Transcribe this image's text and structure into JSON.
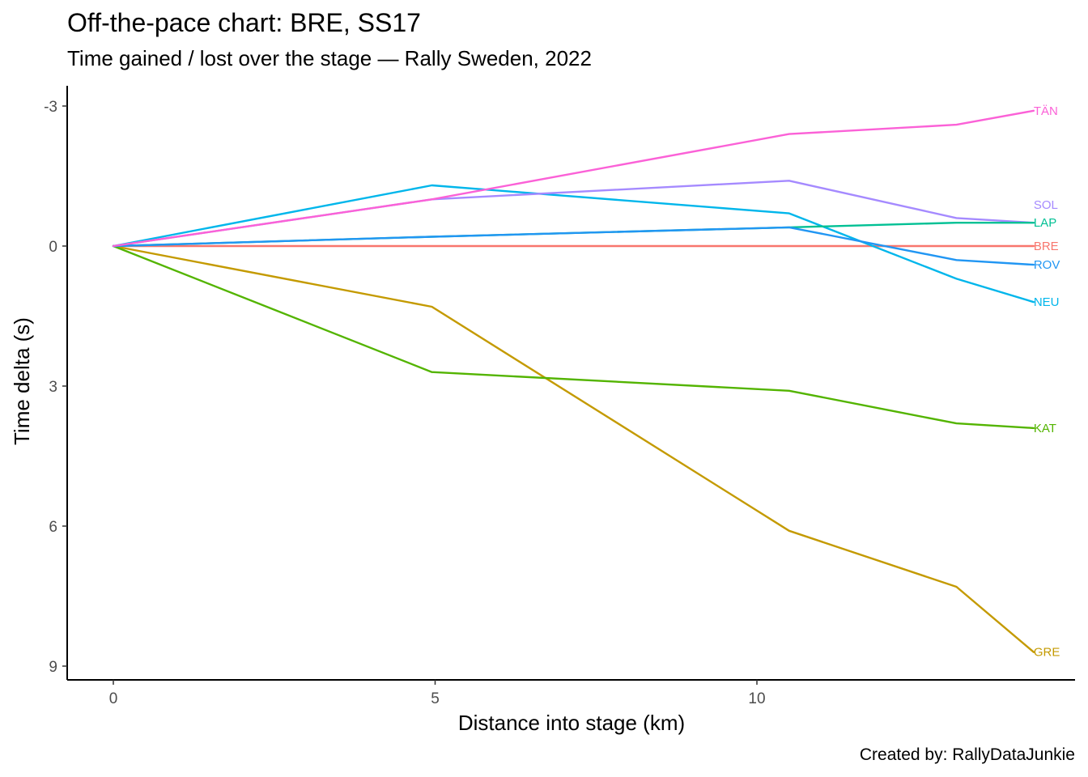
{
  "title": "Off-the-pace chart: BRE, SS17",
  "subtitle": "Time gained / lost over the stage — Rally Sweden, 2022",
  "caption": "Created by: RallyDataJunkie",
  "chart_data": {
    "type": "line",
    "xlabel": "Distance into stage (km)",
    "ylabel": "Time delta (s)",
    "xlim": [
      -0.7,
      15.0
    ],
    "ylim": [
      9.3,
      -3.45
    ],
    "y_reversed": true,
    "x_ticks": [
      0,
      5,
      10
    ],
    "y_ticks": [
      -3,
      0,
      3,
      6,
      9
    ],
    "y_tick_labels": [
      "-3",
      "0",
      "3",
      "6",
      "9"
    ],
    "grid": false,
    "legend": "none (direct end labels)",
    "series": [
      {
        "name": "BRE",
        "color": "#F8766D",
        "x": [
          0,
          4.95,
          10.5,
          13.1,
          14.3
        ],
        "y": [
          0,
          0,
          0,
          0,
          0
        ]
      },
      {
        "name": "GRE",
        "color": "#C49A00",
        "x": [
          0,
          4.95,
          10.5,
          13.1,
          14.3
        ],
        "y": [
          0,
          1.3,
          6.1,
          7.3,
          8.7
        ]
      },
      {
        "name": "KAT",
        "color": "#53B400",
        "x": [
          0,
          4.95,
          10.5,
          13.1,
          14.3
        ],
        "y": [
          0,
          2.7,
          3.1,
          3.8,
          3.9
        ]
      },
      {
        "name": "LAP",
        "color": "#00C094",
        "x": [
          0,
          4.95,
          10.5,
          13.1,
          14.3
        ],
        "y": [
          0,
          -0.2,
          -0.4,
          -0.5,
          -0.5
        ]
      },
      {
        "name": "NEU",
        "color": "#00B6EB",
        "x": [
          0,
          4.95,
          10.5,
          13.1,
          14.3
        ],
        "y": [
          0,
          -1.3,
          -0.7,
          0.7,
          1.2
        ]
      },
      {
        "name": "ROV",
        "color": "#2196F3",
        "x": [
          0,
          4.95,
          10.5,
          13.1,
          14.3
        ],
        "y": [
          0,
          -0.2,
          -0.4,
          0.3,
          0.4
        ]
      },
      {
        "name": "SOL",
        "color": "#A58AFF",
        "x": [
          0,
          4.95,
          10.5,
          13.1,
          14.3
        ],
        "y": [
          0,
          -1.0,
          -1.4,
          -0.6,
          -0.5
        ]
      },
      {
        "name": "TÄN",
        "color": "#FB61D7",
        "x": [
          0,
          4.95,
          10.5,
          13.1,
          14.3
        ],
        "y": [
          0,
          -1.0,
          -2.4,
          -2.6,
          -2.9
        ]
      }
    ]
  }
}
